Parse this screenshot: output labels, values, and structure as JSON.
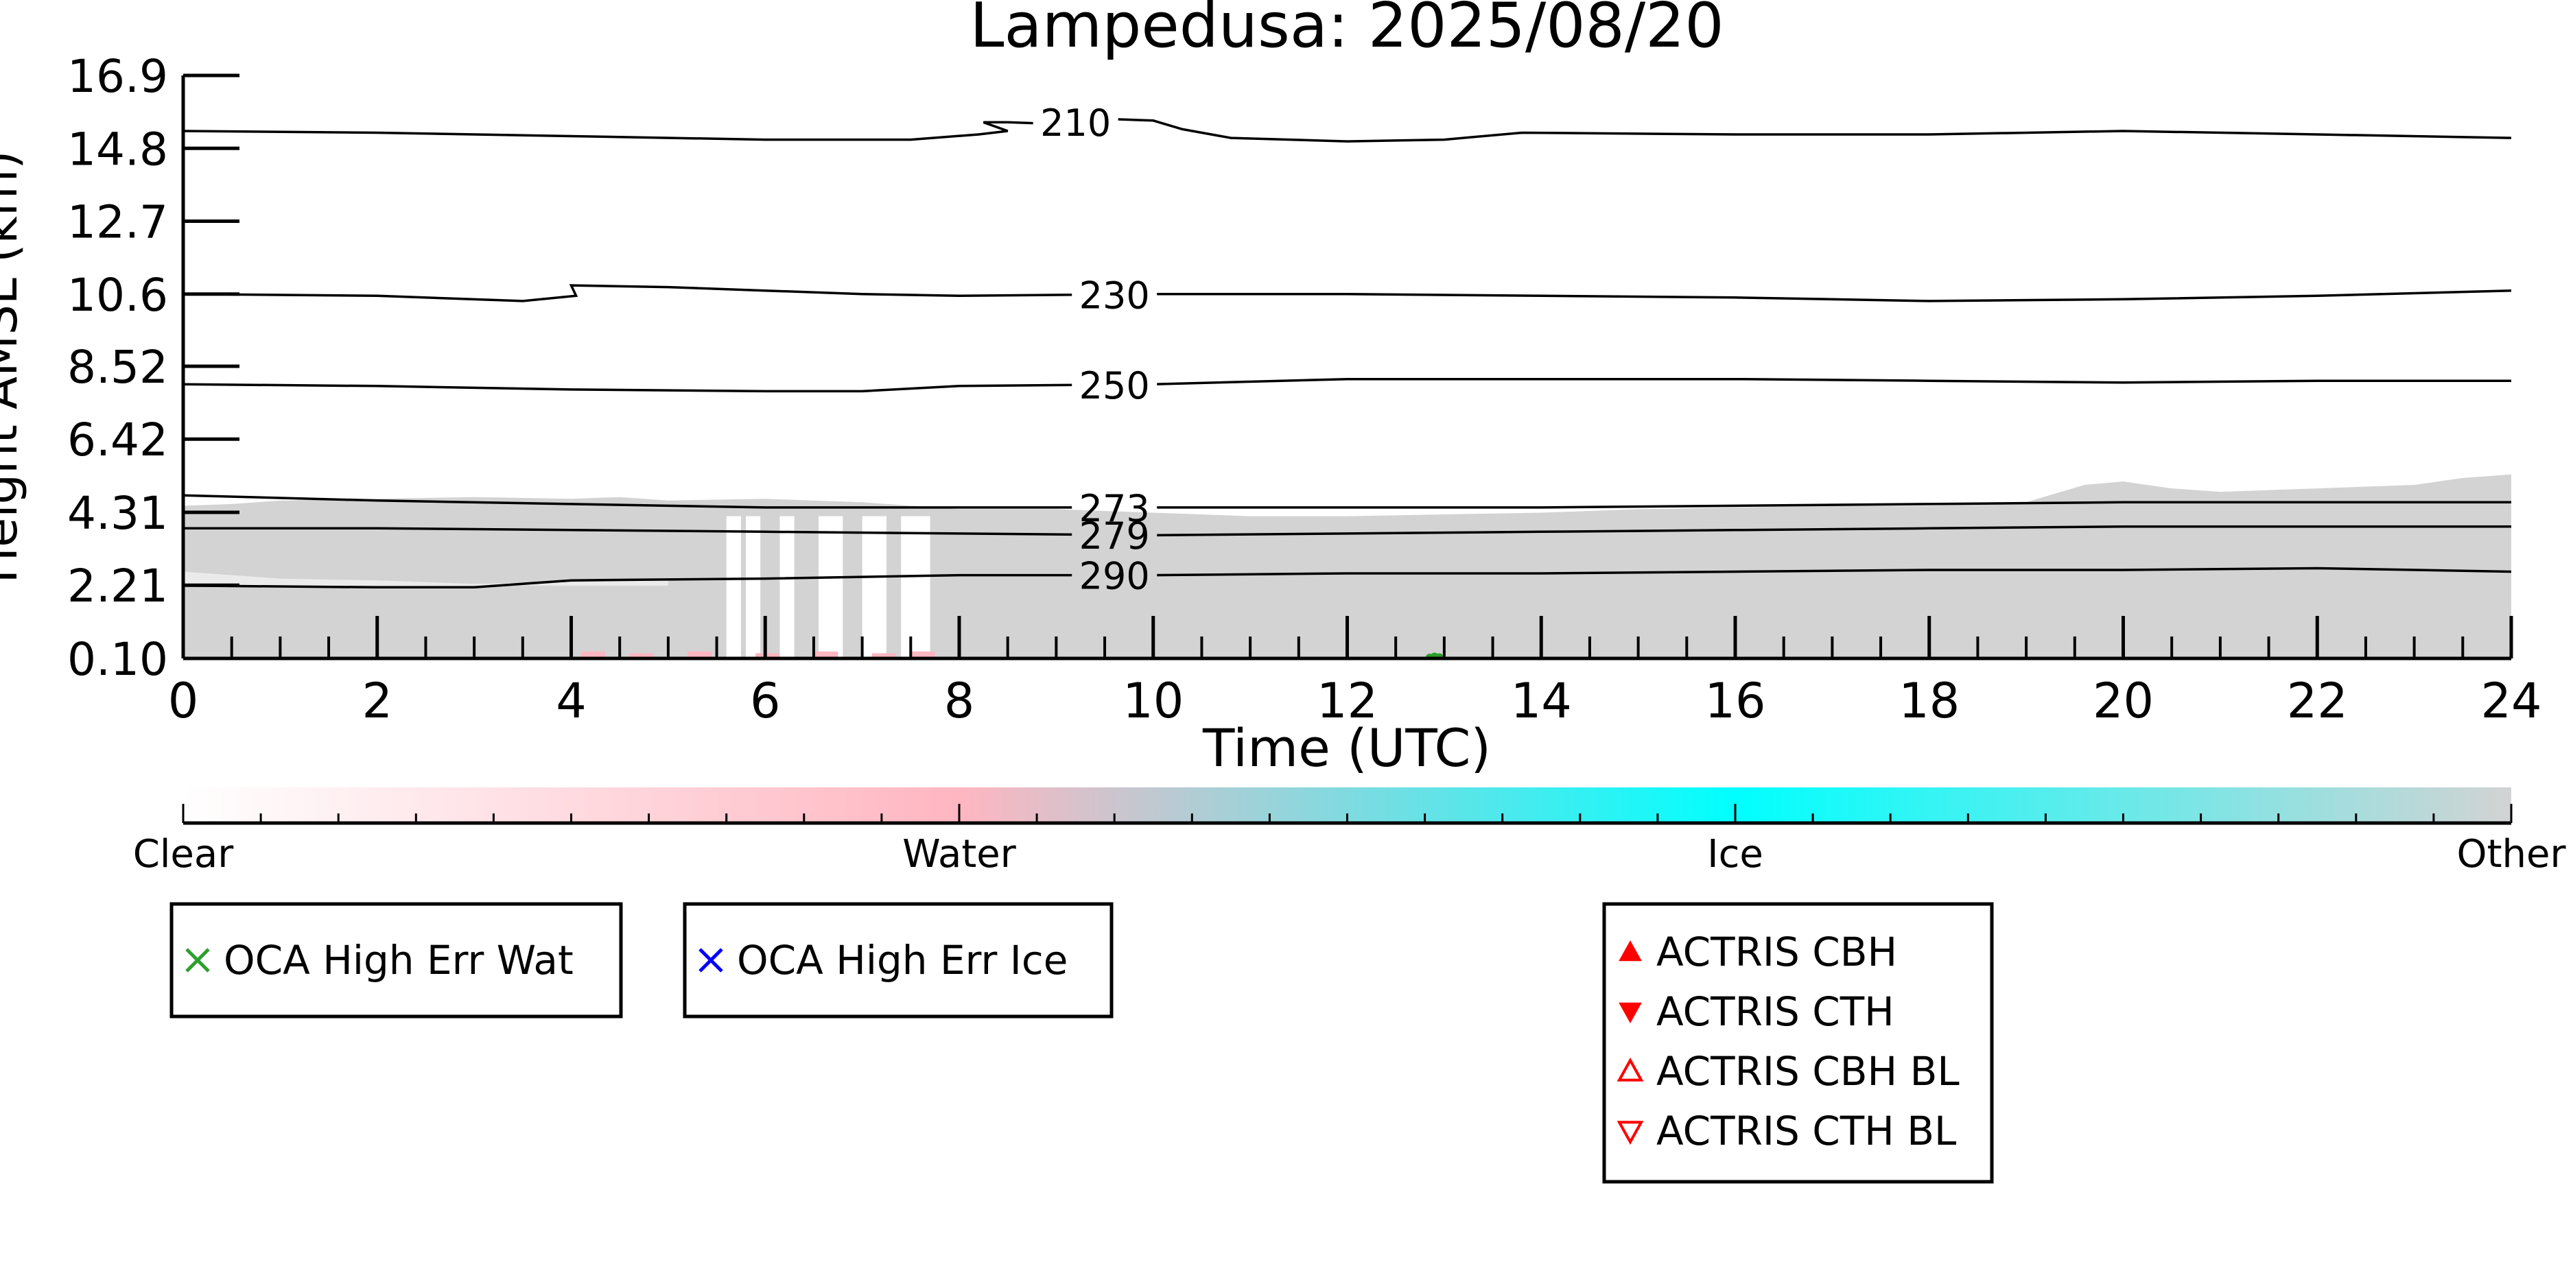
{
  "chart_data": {
    "type": "heatmap",
    "title": "Lampedusa: 2025/08/20",
    "xlabel": "Time (UTC)",
    "ylabel": "Height AMSL (km)",
    "x_ticks": [
      0,
      2,
      4,
      6,
      8,
      10,
      12,
      14,
      16,
      18,
      20,
      22,
      24
    ],
    "xlim": [
      0,
      24
    ],
    "y_ticks": [
      "0.10",
      "2.21",
      "4.31",
      "6.42",
      "8.52",
      "10.6",
      "12.7",
      "14.8",
      "16.9"
    ],
    "ylim": [
      0.1,
      16.9
    ],
    "colorbar": {
      "labels": [
        "Clear",
        "Water",
        "Ice",
        "Other"
      ],
      "colors": [
        "#ffffff",
        "#ffb6c1",
        "#00ffff",
        "#d3d3d3"
      ]
    },
    "cloud_mask": {
      "classes": {
        "Other": "#d3d3d3",
        "Water": "#ffb6c1",
        "OCA High Err Wat": "#2ca02c"
      },
      "top_km": [
        [
          0,
          4.5
        ],
        [
          0.5,
          4.55
        ],
        [
          1,
          4.65
        ],
        [
          2,
          4.7
        ],
        [
          3,
          4.75
        ],
        [
          4,
          4.7
        ],
        [
          4.5,
          4.75
        ],
        [
          5,
          4.65
        ],
        [
          6,
          4.7
        ],
        [
          7,
          4.6
        ],
        [
          8,
          4.4
        ],
        [
          9,
          4.4
        ],
        [
          10,
          4.3
        ],
        [
          11,
          4.2
        ],
        [
          12,
          4.2
        ],
        [
          13,
          4.25
        ],
        [
          14,
          4.3
        ],
        [
          15,
          4.4
        ],
        [
          16,
          4.45
        ],
        [
          17,
          4.5
        ],
        [
          18,
          4.5
        ],
        [
          19,
          4.6
        ],
        [
          19.6,
          5.1
        ],
        [
          20,
          5.2
        ],
        [
          20.5,
          5.0
        ],
        [
          21,
          4.9
        ],
        [
          22,
          5.0
        ],
        [
          23,
          5.1
        ],
        [
          23.5,
          5.3
        ],
        [
          24,
          5.4
        ]
      ],
      "lower_edge_km": [
        [
          0,
          2.6
        ],
        [
          1,
          2.4
        ],
        [
          2,
          2.35
        ],
        [
          3,
          2.25
        ],
        [
          4,
          2.3
        ],
        [
          5,
          2.35
        ]
      ],
      "gaps_h": [
        [
          5.6,
          5.75
        ],
        [
          5.8,
          5.95
        ],
        [
          6.15,
          6.3
        ],
        [
          6.55,
          6.8
        ],
        [
          7.0,
          7.25
        ],
        [
          7.4,
          7.7
        ]
      ],
      "water_pixels": [
        [
          4.1,
          0.3
        ],
        [
          4.6,
          0.25
        ],
        [
          5.2,
          0.3
        ],
        [
          5.9,
          0.25
        ],
        [
          6.5,
          0.3
        ],
        [
          7.1,
          0.25
        ],
        [
          7.5,
          0.3
        ]
      ],
      "oca_wat_points": [
        [
          12.85,
          0.12
        ],
        [
          12.9,
          0.15
        ],
        [
          12.95,
          0.13
        ]
      ]
    },
    "series": [
      {
        "name": "210",
        "label_at": 9.2,
        "points": [
          [
            0,
            15.3
          ],
          [
            2,
            15.25
          ],
          [
            4,
            15.15
          ],
          [
            6,
            15.05
          ],
          [
            7.5,
            15.05
          ],
          [
            8.2,
            15.2
          ],
          [
            8.5,
            15.3
          ],
          [
            8.25,
            15.55
          ],
          [
            8.5,
            15.55
          ],
          [
            9,
            15.5
          ],
          [
            9.5,
            15.65
          ],
          [
            10,
            15.6
          ],
          [
            10.3,
            15.35
          ],
          [
            10.8,
            15.1
          ],
          [
            12,
            15.0
          ],
          [
            13,
            15.05
          ],
          [
            13.8,
            15.25
          ],
          [
            16,
            15.2
          ],
          [
            18,
            15.2
          ],
          [
            20,
            15.3
          ],
          [
            22,
            15.2
          ],
          [
            24,
            15.1
          ]
        ]
      },
      {
        "name": "230",
        "label_at": 9.6,
        "points": [
          [
            0,
            10.6
          ],
          [
            2,
            10.55
          ],
          [
            3.5,
            10.4
          ],
          [
            4.05,
            10.55
          ],
          [
            4.0,
            10.85
          ],
          [
            5,
            10.8
          ],
          [
            6,
            10.7
          ],
          [
            7,
            10.6
          ],
          [
            8,
            10.55
          ],
          [
            10,
            10.6
          ],
          [
            12,
            10.6
          ],
          [
            14,
            10.55
          ],
          [
            16,
            10.5
          ],
          [
            18,
            10.4
          ],
          [
            20,
            10.45
          ],
          [
            22,
            10.55
          ],
          [
            24,
            10.7
          ]
        ]
      },
      {
        "name": "250",
        "label_at": 9.6,
        "points": [
          [
            0,
            8.0
          ],
          [
            2,
            7.95
          ],
          [
            4,
            7.85
          ],
          [
            6,
            7.8
          ],
          [
            7,
            7.8
          ],
          [
            8,
            7.95
          ],
          [
            10,
            8.0
          ],
          [
            12,
            8.15
          ],
          [
            14,
            8.15
          ],
          [
            16,
            8.15
          ],
          [
            18,
            8.1
          ],
          [
            20,
            8.05
          ],
          [
            22,
            8.1
          ],
          [
            24,
            8.1
          ]
        ]
      },
      {
        "name": "273",
        "label_at": 9.6,
        "points": [
          [
            0,
            4.8
          ],
          [
            2,
            4.65
          ],
          [
            4,
            4.55
          ],
          [
            6,
            4.45
          ],
          [
            8,
            4.45
          ],
          [
            10,
            4.45
          ],
          [
            12,
            4.45
          ],
          [
            14,
            4.45
          ],
          [
            16,
            4.5
          ],
          [
            18,
            4.55
          ],
          [
            20,
            4.6
          ],
          [
            22,
            4.6
          ],
          [
            24,
            4.6
          ]
        ]
      },
      {
        "name": "279",
        "label_at": 9.6,
        "points": [
          [
            0,
            3.85
          ],
          [
            2,
            3.85
          ],
          [
            4,
            3.8
          ],
          [
            6,
            3.75
          ],
          [
            8,
            3.7
          ],
          [
            10,
            3.65
          ],
          [
            12,
            3.7
          ],
          [
            14,
            3.75
          ],
          [
            16,
            3.8
          ],
          [
            18,
            3.85
          ],
          [
            20,
            3.9
          ],
          [
            22,
            3.9
          ],
          [
            24,
            3.9
          ]
        ]
      },
      {
        "name": "290",
        "label_at": 9.6,
        "points": [
          [
            0,
            2.2
          ],
          [
            2,
            2.15
          ],
          [
            3,
            2.15
          ],
          [
            3.5,
            2.25
          ],
          [
            4,
            2.35
          ],
          [
            6,
            2.4
          ],
          [
            8,
            2.5
          ],
          [
            10,
            2.5
          ],
          [
            12,
            2.55
          ],
          [
            14,
            2.55
          ],
          [
            16,
            2.6
          ],
          [
            18,
            2.65
          ],
          [
            20,
            2.65
          ],
          [
            22,
            2.7
          ],
          [
            24,
            2.6
          ]
        ]
      }
    ],
    "legends": [
      {
        "entries": [
          {
            "label": "OCA High Err Wat",
            "marker": "x",
            "color": "#2ca02c"
          }
        ]
      },
      {
        "entries": [
          {
            "label": "OCA High Err Ice",
            "marker": "x",
            "color": "#0000ff"
          }
        ]
      },
      {
        "entries": [
          {
            "label": "ACTRIS CBH",
            "marker": "triangle-up",
            "color": "#ff0000"
          },
          {
            "label": "ACTRIS CTH",
            "marker": "triangle-down",
            "color": "#ff0000"
          },
          {
            "label": "ACTRIS CBH BL",
            "marker": "triangle-up-open",
            "color": "#ff0000"
          },
          {
            "label": "ACTRIS CTH BL",
            "marker": "triangle-down-open",
            "color": "#ff0000"
          }
        ]
      }
    ]
  }
}
